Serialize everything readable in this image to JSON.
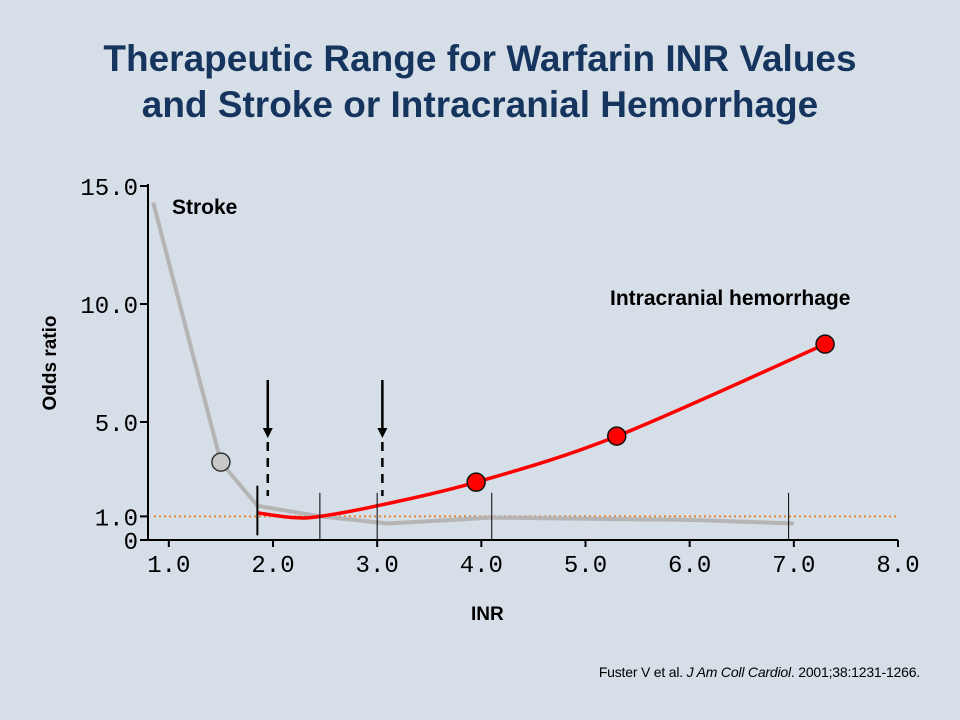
{
  "title": {
    "line1": "Therapeutic Range for Warfarin INR Values",
    "line2": "and Stroke or Intracranial Hemorrhage"
  },
  "citation": {
    "authors": "Fuster V et al. ",
    "journal": "J Am Coll Cardiol",
    "details": ". 2001;38:1231-1266."
  },
  "colors": {
    "stroke_curve": "#b5b5b5",
    "hemorrhage_curve": "#ff0000",
    "reference_line": "#e8822e",
    "title": "#16355e",
    "background": "#d6dee7"
  },
  "chart_data": {
    "type": "line",
    "xlabel": "INR",
    "ylabel": "Odds ratio",
    "xlim": [
      0.8,
      8.0
    ],
    "ylim": [
      0,
      15.0
    ],
    "x_ticks": [
      "1.0",
      "2.0",
      "3.0",
      "4.0",
      "5.0",
      "6.0",
      "7.0",
      "8.0"
    ],
    "y_ticks": [
      "0",
      "1.0",
      "5.0",
      "10.0",
      "15.0"
    ],
    "reference_line": {
      "y": 1.0,
      "style": "dotted"
    },
    "series": [
      {
        "name": "Stroke",
        "points": [
          [
            0.85,
            14.3
          ],
          [
            1.5,
            3.3
          ],
          [
            1.85,
            1.45
          ],
          [
            2.45,
            1.0
          ],
          [
            3.1,
            0.7
          ],
          [
            4.1,
            0.95
          ],
          [
            5.0,
            0.9
          ],
          [
            6.0,
            0.85
          ],
          [
            7.0,
            0.7
          ]
        ],
        "markers": [
          [
            1.5,
            3.3
          ]
        ]
      },
      {
        "name": "Intracranial hemorrhage",
        "points": [
          [
            1.85,
            1.15
          ],
          [
            2.2,
            0.95
          ],
          [
            2.45,
            1.0
          ],
          [
            3.0,
            1.45
          ],
          [
            3.95,
            2.45
          ],
          [
            5.3,
            4.4
          ],
          [
            7.3,
            8.3
          ]
        ],
        "markers": [
          [
            3.95,
            2.45
          ],
          [
            5.3,
            4.4
          ],
          [
            7.3,
            8.3
          ]
        ]
      }
    ],
    "arrows": [
      {
        "x": 1.95
      },
      {
        "x": 3.05
      }
    ],
    "tick_bars": [
      1.85,
      2.45,
      3.0,
      4.1,
      6.95
    ]
  }
}
